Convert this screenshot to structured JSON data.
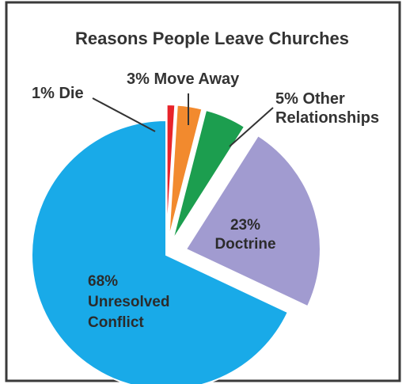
{
  "chart_data": {
    "type": "pie",
    "title": "Reasons People Leave Churches",
    "slices": [
      {
        "label_lines": [
          "1% Die"
        ],
        "value": 1,
        "color": "#e8232a",
        "outside": true
      },
      {
        "label_lines": [
          "3% Move Away"
        ],
        "value": 3,
        "color": "#f28a2e",
        "outside": true
      },
      {
        "label_lines": [
          "5% Other",
          "Relationships"
        ],
        "value": 5,
        "color": "#1c9e4f",
        "outside": true
      },
      {
        "label_lines": [
          "23%",
          "Doctrine"
        ],
        "value": 23,
        "color": "#a19bd0",
        "outside": false
      },
      {
        "label_lines": [
          "68%",
          "Unresolved",
          "Conflict"
        ],
        "value": 68,
        "color": "#19aae8",
        "outside": false
      }
    ],
    "legend": "none",
    "exploded": true
  }
}
